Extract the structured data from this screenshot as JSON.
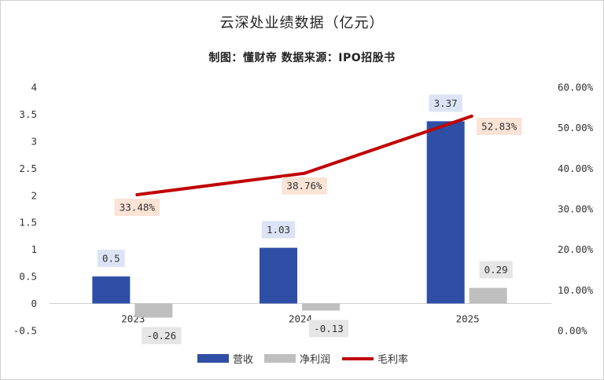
{
  "chart_data": {
    "type": "bar",
    "title": "云深处业绩数据（亿元）",
    "subtitle": "制图：懂财帝     数据来源：IPO招股书",
    "categories": [
      "2023",
      "2024",
      "2025"
    ],
    "series": [
      {
        "name": "营收",
        "type": "bar",
        "axis": "left",
        "values": [
          0.5,
          1.03,
          3.37
        ],
        "labels": [
          "0.5",
          "1.03",
          "3.37"
        ],
        "color": "#2E4FA5",
        "label_bg": "#DCE3F5"
      },
      {
        "name": "净利润",
        "type": "bar",
        "axis": "left",
        "values": [
          -0.26,
          -0.13,
          0.29
        ],
        "labels": [
          "-0.26",
          "-0.13",
          "0.29"
        ],
        "color": "#BFBFBF",
        "label_bg": "#E6E6E6"
      },
      {
        "name": "毛利率",
        "type": "line",
        "axis": "right",
        "values": [
          33.48,
          38.76,
          52.83
        ],
        "labels": [
          "33.48%",
          "38.76%",
          "52.83%"
        ],
        "color": "#C00000",
        "label_bg": "#FBE3D6"
      }
    ],
    "y_left": {
      "min": -0.5,
      "max": 4,
      "ticks": [
        "4",
        "3.5",
        "3",
        "2.5",
        "2",
        "1.5",
        "1",
        "0.5",
        "0",
        "-0.5"
      ]
    },
    "y_right": {
      "min": 0,
      "max": 60,
      "ticks": [
        "60.00%",
        "50.00%",
        "40.00%",
        "30.00%",
        "20.00%",
        "10.00%",
        "0.00%"
      ]
    },
    "grid": false,
    "legend_position": "bottom"
  }
}
